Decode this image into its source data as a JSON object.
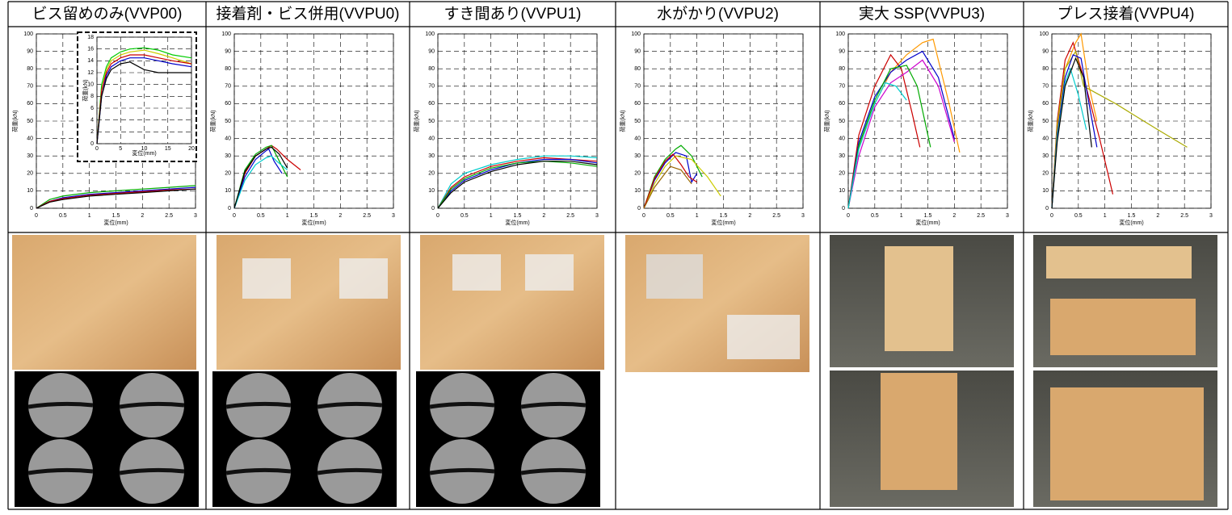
{
  "table": {
    "headers": [
      "ビス留めのみ(VVP00)",
      "接着剤・ビス併用(VVPU0)",
      "すき間あり(VVPU1)",
      "水がかり(VVPU2)",
      "実大 SSP(VVPU3)",
      "プレス接着(VVPU4)"
    ]
  },
  "chart_data": [
    {
      "type": "line",
      "xlabel": "変位(mm)",
      "ylabel": "荷重(kN)",
      "xlim": [
        0,
        3
      ],
      "ylim": [
        0,
        100
      ],
      "xticks": [
        0,
        0.5,
        1,
        1.5,
        2,
        2.5,
        3
      ],
      "yticks": [
        0,
        10,
        20,
        30,
        40,
        50,
        60,
        70,
        80,
        90,
        100
      ],
      "grid": true,
      "series": [
        {
          "color": "#00aa00",
          "x": [
            0,
            0.25,
            0.5,
            1,
            1.5,
            2,
            2.5,
            3
          ],
          "values": [
            0,
            5,
            7,
            9,
            10,
            11,
            12,
            13
          ]
        },
        {
          "color": "#0000cc",
          "x": [
            0,
            0.25,
            0.5,
            1,
            1.5,
            2,
            2.5,
            3
          ],
          "values": [
            0,
            4,
            6,
            8,
            9,
            10,
            11,
            12
          ]
        },
        {
          "color": "#cc0000",
          "x": [
            0,
            0.25,
            0.5,
            1,
            1.5,
            2,
            2.5,
            3
          ],
          "values": [
            0,
            4,
            5.5,
            7.5,
            8.5,
            9.5,
            10.5,
            11
          ]
        },
        {
          "color": "#000000",
          "x": [
            0,
            0.25,
            0.5,
            1,
            1.5,
            2,
            2.5,
            3
          ],
          "values": [
            0,
            3.5,
            5,
            7,
            8,
            9,
            10,
            11
          ]
        }
      ],
      "inset": {
        "xlabel": "変位(mm)",
        "ylabel": "荷重(kN)",
        "xlim": [
          0,
          20
        ],
        "ylim": [
          0,
          18
        ],
        "xticks": [
          0,
          5,
          10,
          15,
          20
        ],
        "yticks": [
          0,
          2,
          4,
          6,
          8,
          10,
          12,
          14,
          16,
          18
        ],
        "series": [
          {
            "color": "#00cc00",
            "x": [
              0,
              1,
              2,
              3,
              5,
              7,
              10,
              13,
              16,
              20
            ],
            "values": [
              0,
              10,
              13,
              14.5,
              15.5,
              16,
              16.2,
              15.8,
              15,
              14.5
            ]
          },
          {
            "color": "#cccc00",
            "x": [
              0,
              1,
              2,
              3,
              5,
              7,
              10,
              13,
              16,
              20
            ],
            "values": [
              0,
              9,
              12.5,
              14,
              15,
              15.5,
              15.8,
              15.2,
              14.5,
              13.5
            ]
          },
          {
            "color": "#cc0000",
            "x": [
              0,
              1,
              2,
              3,
              5,
              7,
              10,
              13,
              16,
              20
            ],
            "values": [
              0,
              9,
              12,
              13.5,
              14.5,
              15,
              15,
              14.5,
              14,
              13.5
            ]
          },
          {
            "color": "#0000cc",
            "x": [
              0,
              1,
              2,
              3,
              5,
              7,
              10,
              13,
              16,
              20
            ],
            "values": [
              0,
              8,
              11.5,
              13,
              14,
              14.5,
              14.5,
              14,
              13.5,
              13
            ]
          },
          {
            "color": "#000000",
            "x": [
              0,
              1,
              2,
              3,
              5,
              7,
              10,
              13,
              16,
              20
            ],
            "values": [
              0,
              8,
              11,
              12.5,
              13.5,
              13.8,
              12.5,
              12,
              12,
              12
            ]
          }
        ]
      }
    },
    {
      "type": "line",
      "xlabel": "変位(mm)",
      "ylabel": "荷重(kN)",
      "xlim": [
        0,
        3
      ],
      "ylim": [
        0,
        100
      ],
      "xticks": [
        0,
        0.5,
        1,
        1.5,
        2,
        2.5,
        3
      ],
      "yticks": [
        0,
        10,
        20,
        30,
        40,
        50,
        60,
        70,
        80,
        90,
        100
      ],
      "grid": true,
      "series": [
        {
          "color": "#cc0000",
          "x": [
            0,
            0.2,
            0.4,
            0.6,
            0.7,
            0.8,
            1.0,
            1.25
          ],
          "values": [
            0,
            20,
            30,
            34,
            36,
            34,
            28,
            22
          ]
        },
        {
          "color": "#00aa00",
          "x": [
            0,
            0.2,
            0.4,
            0.6,
            0.7,
            0.8,
            0.9,
            1.0
          ],
          "values": [
            0,
            22,
            31,
            35,
            36,
            30,
            24,
            18
          ]
        },
        {
          "color": "#0000cc",
          "x": [
            0,
            0.2,
            0.4,
            0.6,
            0.65,
            0.75,
            0.9
          ],
          "values": [
            0,
            18,
            28,
            33,
            34,
            27,
            20
          ]
        },
        {
          "color": "#00cccc",
          "x": [
            0,
            0.2,
            0.4,
            0.6,
            0.7,
            0.8,
            1.0
          ],
          "values": [
            0,
            16,
            25,
            29,
            30,
            27,
            22
          ]
        },
        {
          "color": "#000000",
          "x": [
            0,
            0.2,
            0.4,
            0.6,
            0.7,
            0.85,
            1.0
          ],
          "values": [
            0,
            21,
            30,
            34,
            35,
            31,
            23
          ]
        }
      ]
    },
    {
      "type": "line",
      "xlabel": "変位(mm)",
      "ylabel": "荷重(kN)",
      "xlim": [
        0,
        3
      ],
      "ylim": [
        0,
        100
      ],
      "xticks": [
        0,
        0.5,
        1,
        1.5,
        2,
        2.5,
        3
      ],
      "yticks": [
        0,
        10,
        20,
        30,
        40,
        50,
        60,
        70,
        80,
        90,
        100
      ],
      "grid": true,
      "series": [
        {
          "color": "#00cccc",
          "x": [
            0,
            0.25,
            0.5,
            1,
            1.5,
            2,
            2.5,
            3
          ],
          "values": [
            0,
            14,
            20,
            25,
            28,
            30,
            30,
            29
          ]
        },
        {
          "color": "#cc0000",
          "x": [
            0,
            0.25,
            0.5,
            1,
            1.5,
            2,
            2.5,
            3
          ],
          "values": [
            0,
            12,
            18,
            24,
            27,
            29,
            28,
            27
          ]
        },
        {
          "color": "#0000cc",
          "x": [
            0,
            0.25,
            0.5,
            1,
            1.5,
            2,
            2.5,
            3
          ],
          "values": [
            0,
            10,
            16,
            22,
            26,
            28,
            28,
            26
          ]
        },
        {
          "color": "#00aa00",
          "x": [
            0,
            0.25,
            0.5,
            1,
            1.5,
            2,
            2.5,
            3
          ],
          "values": [
            0,
            11,
            17,
            23,
            26,
            27,
            26,
            24
          ]
        },
        {
          "color": "#000000",
          "x": [
            0,
            0.25,
            0.5,
            1,
            1.5,
            2,
            2.5,
            3
          ],
          "values": [
            0,
            9,
            15,
            21,
            25,
            27,
            27,
            25
          ]
        }
      ]
    },
    {
      "type": "line",
      "xlabel": "変位(mm)",
      "ylabel": "荷重(kN)",
      "xlim": [
        0,
        3
      ],
      "ylim": [
        0,
        100
      ],
      "xticks": [
        0,
        0.5,
        1,
        1.5,
        2,
        2.5,
        3
      ],
      "yticks": [
        0,
        10,
        20,
        30,
        40,
        50,
        60,
        70,
        80,
        90,
        100
      ],
      "grid": true,
      "series": [
        {
          "color": "#00aa00",
          "x": [
            0,
            0.2,
            0.4,
            0.6,
            0.7,
            0.9,
            1.1
          ],
          "values": [
            0,
            18,
            28,
            34,
            36,
            30,
            18
          ]
        },
        {
          "color": "#0000cc",
          "x": [
            0,
            0.2,
            0.4,
            0.6,
            0.8,
            0.9,
            1.0
          ],
          "values": [
            0,
            16,
            26,
            32,
            30,
            15,
            20
          ]
        },
        {
          "color": "#cccc00",
          "x": [
            0,
            0.2,
            0.4,
            0.6,
            0.9,
            1.2,
            1.45
          ],
          "values": [
            0,
            14,
            24,
            30,
            28,
            18,
            7
          ]
        },
        {
          "color": "#cc0000",
          "x": [
            0,
            0.2,
            0.4,
            0.55,
            0.7,
            0.85,
            1.0
          ],
          "values": [
            0,
            17,
            27,
            31,
            25,
            18,
            15
          ]
        },
        {
          "color": "#996600",
          "x": [
            0,
            0.2,
            0.4,
            0.5,
            0.7,
            0.9
          ],
          "values": [
            0,
            12,
            20,
            24,
            22,
            14
          ]
        }
      ]
    },
    {
      "type": "line",
      "xlabel": "変位(mm)",
      "ylabel": "荷重(kN)",
      "xlim": [
        0,
        3
      ],
      "ylim": [
        0,
        100
      ],
      "xticks": [
        0,
        0.5,
        1,
        1.5,
        2,
        2.5,
        3
      ],
      "yticks": [
        0,
        10,
        20,
        30,
        40,
        50,
        60,
        70,
        80,
        90,
        100
      ],
      "grid": true,
      "series": [
        {
          "color": "#ff9900",
          "x": [
            0,
            0.2,
            0.5,
            0.8,
            1.1,
            1.4,
            1.6,
            1.9,
            2.1
          ],
          "values": [
            0,
            35,
            60,
            78,
            88,
            95,
            97,
            60,
            32
          ]
        },
        {
          "color": "#cc0000",
          "x": [
            0,
            0.2,
            0.5,
            0.8,
            1.0,
            1.2,
            1.35
          ],
          "values": [
            0,
            42,
            70,
            88,
            80,
            55,
            35
          ]
        },
        {
          "color": "#0000cc",
          "x": [
            0,
            0.2,
            0.5,
            0.8,
            1.1,
            1.4,
            1.7,
            2.0
          ],
          "values": [
            0,
            38,
            64,
            78,
            85,
            90,
            75,
            40
          ]
        },
        {
          "color": "#cc00cc",
          "x": [
            0,
            0.2,
            0.5,
            0.8,
            1.1,
            1.4,
            1.7,
            2.0
          ],
          "values": [
            0,
            30,
            58,
            72,
            78,
            85,
            70,
            38
          ]
        },
        {
          "color": "#00aa00",
          "x": [
            0,
            0.2,
            0.5,
            0.8,
            1.1,
            1.3,
            1.55
          ],
          "values": [
            0,
            36,
            62,
            80,
            82,
            70,
            35
          ]
        },
        {
          "color": "#00cccc",
          "x": [
            0,
            0.2,
            0.5,
            0.7,
            0.9,
            1.1
          ],
          "values": [
            0,
            34,
            60,
            72,
            70,
            62
          ]
        }
      ]
    },
    {
      "type": "line",
      "xlabel": "変位(mm)",
      "ylabel": "荷重(kN)",
      "xlim": [
        0,
        3
      ],
      "ylim": [
        0,
        100
      ],
      "xticks": [
        0,
        0.5,
        1,
        1.5,
        2,
        2.5,
        3
      ],
      "yticks": [
        0,
        10,
        20,
        30,
        40,
        50,
        60,
        70,
        80,
        90,
        100
      ],
      "grid": true,
      "series": [
        {
          "color": "#ff9900",
          "x": [
            0,
            0.1,
            0.25,
            0.45,
            0.55,
            0.7,
            0.85
          ],
          "values": [
            0,
            45,
            80,
            95,
            100,
            70,
            50
          ]
        },
        {
          "color": "#cc0000",
          "x": [
            0,
            0.1,
            0.25,
            0.4,
            0.6,
            0.9,
            1.15
          ],
          "values": [
            0,
            50,
            85,
            95,
            75,
            40,
            8
          ]
        },
        {
          "color": "#aaaa00",
          "x": [
            0,
            0.1,
            0.25,
            0.45,
            0.6,
            1.2,
            2.0,
            2.55
          ],
          "values": [
            0,
            48,
            80,
            90,
            70,
            60,
            45,
            35
          ]
        },
        {
          "color": "#0000cc",
          "x": [
            0,
            0.1,
            0.25,
            0.4,
            0.55,
            0.7,
            0.85
          ],
          "values": [
            0,
            42,
            75,
            88,
            86,
            60,
            35
          ]
        },
        {
          "color": "#00cccc",
          "x": [
            0,
            0.1,
            0.25,
            0.35,
            0.5,
            0.65
          ],
          "values": [
            0,
            40,
            72,
            80,
            65,
            45
          ]
        },
        {
          "color": "#000000",
          "x": [
            0,
            0.1,
            0.25,
            0.45,
            0.6,
            0.75
          ],
          "values": [
            0,
            38,
            70,
            86,
            75,
            35
          ]
        }
      ]
    }
  ]
}
